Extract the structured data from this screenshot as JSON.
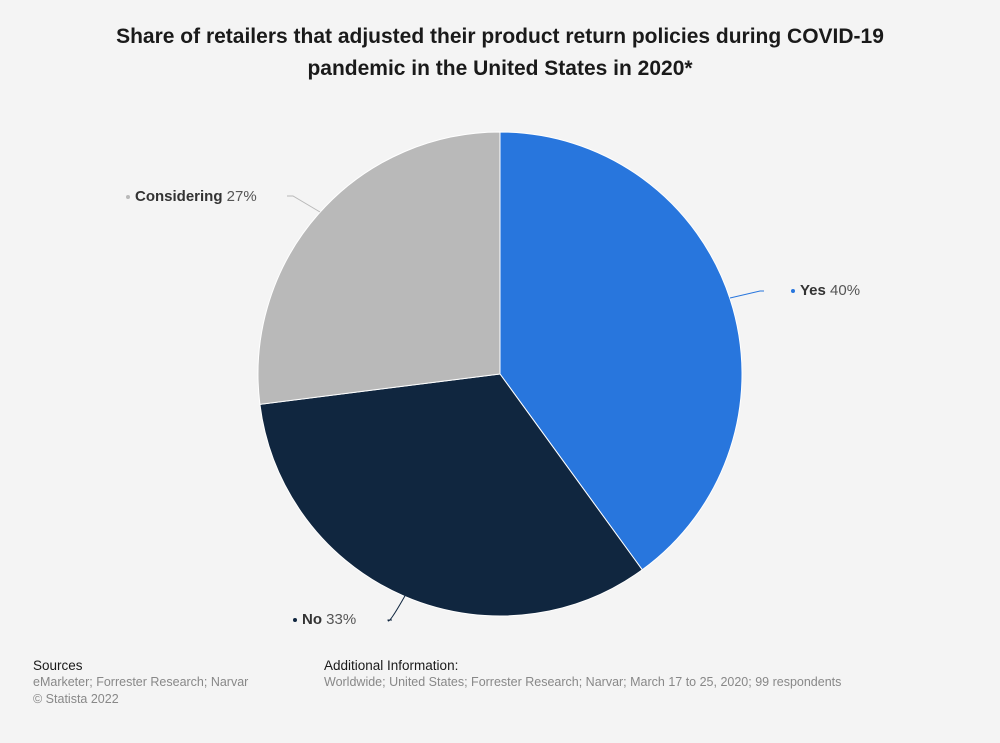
{
  "chart_data": {
    "type": "pie",
    "title": "Share of retailers that adjusted their product return policies during COVID-19 pandemic in the United States in 2020*",
    "unit": "%",
    "slices": [
      {
        "label": "Yes",
        "value": 40,
        "display": "40%",
        "color": "#2876dd"
      },
      {
        "label": "No",
        "value": 33,
        "display": "33%",
        "color": "#10263f"
      },
      {
        "label": "Considering",
        "value": 27,
        "display": "27%",
        "color": "#b9b9b9"
      }
    ]
  },
  "footer": {
    "sources_heading": "Sources",
    "sources_text": "eMarketer; Forrester Research; Narvar",
    "copyright": "© Statista 2022",
    "additional_heading": "Additional Information:",
    "additional_text": "Worldwide; United States; Forrester Research; Narvar; March 17 to 25, 2020; 99 respondents"
  }
}
